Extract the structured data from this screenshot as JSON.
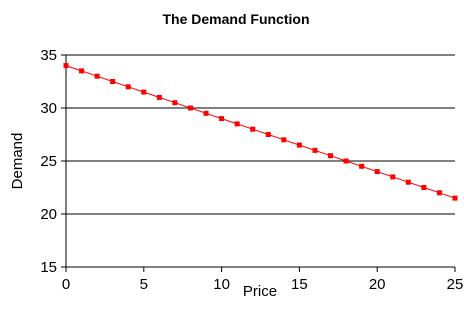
{
  "chart_data": {
    "type": "line",
    "title": "The Demand Function",
    "xlabel": "Price",
    "ylabel": "Demand",
    "xlim": [
      0,
      25
    ],
    "ylim": [
      15,
      35
    ],
    "xticks": [
      0,
      5,
      10,
      15,
      20,
      25
    ],
    "yticks": [
      15,
      20,
      25,
      30,
      35
    ],
    "grid": "horizontal",
    "legend": "none",
    "series": [
      {
        "color": "#ff0000",
        "marker": "square",
        "x": [
          0,
          1,
          2,
          3,
          4,
          5,
          6,
          7,
          8,
          9,
          10,
          11,
          12,
          13,
          14,
          15,
          16,
          17,
          18,
          19,
          20,
          21,
          22,
          23,
          24,
          25
        ],
        "y": [
          34,
          33.5,
          33,
          32.5,
          32,
          31.5,
          31,
          30.5,
          30,
          29.5,
          29,
          28.5,
          28,
          27.5,
          27,
          26.5,
          26,
          25.5,
          25,
          24.5,
          24,
          23.5,
          23,
          22.5,
          22,
          21.5
        ]
      }
    ]
  }
}
